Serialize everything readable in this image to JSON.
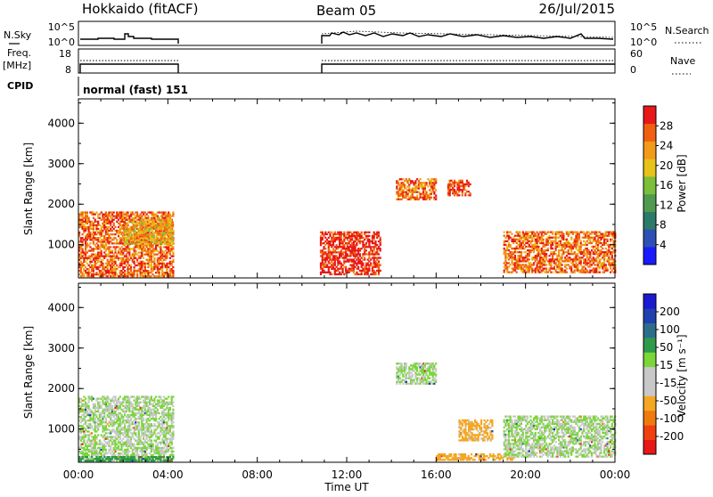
{
  "header": {
    "station": "Hokkaido (fitACF)",
    "beam": "Beam 05",
    "date": "26/Jul/2015"
  },
  "summary_panels": {
    "nsky": {
      "left_label": "N.Sky",
      "right_label": "N.Search",
      "left_ticks": [
        "10^5",
        "10^0"
      ],
      "right_ticks": [
        "10^5",
        "10^0"
      ]
    },
    "freq": {
      "left_label_1": "Freq.",
      "left_label_2": "[MHz]",
      "right_label": "Nave",
      "left_ticks": [
        "18",
        "8"
      ],
      "right_ticks": [
        "60",
        "0"
      ]
    },
    "cpid": {
      "label": "CPID",
      "segment_label": "normal (fast) 151"
    }
  },
  "x_axis": {
    "title": "Time UT",
    "ticks": [
      "00:00",
      "04:00",
      "08:00",
      "12:00",
      "16:00",
      "20:00",
      "00:00"
    ]
  },
  "colors": {
    "power_scale": [
      "#1a1aff",
      "#2e4fb5",
      "#2c7a6a",
      "#4f9a4f",
      "#7bbf3a",
      "#e6c21a",
      "#f29a1a",
      "#f06010",
      "#e81818"
    ],
    "velocity_scale": [
      "#e81818",
      "#f04010",
      "#f07a10",
      "#f5a623",
      "#c8c8c8",
      "#c8c8c8",
      "#7bd63a",
      "#2e9a4a",
      "#2c6e8a",
      "#2040b0",
      "#1a1ad0"
    ]
  },
  "chart_data": [
    {
      "type": "heatmap",
      "title": "",
      "xlabel": "",
      "ylabel": "Slant Range [km]",
      "yticks": [
        "1000",
        "2000",
        "3000",
        "4000"
      ],
      "ylim": [
        180,
        4600
      ],
      "xlim_hours": [
        0,
        24
      ],
      "colorbar": {
        "label": "Power [dB]",
        "ticks": [
          "4",
          "8",
          "12",
          "16",
          "20",
          "24",
          "28"
        ],
        "range": [
          0,
          32
        ]
      },
      "data_gap_hours": [
        4.2,
        10.8
      ],
      "echo_regions": [
        {
          "t0": 0.0,
          "t1": 4.2,
          "r0": 200,
          "r1": 1800,
          "power_db": 26
        },
        {
          "t0": 2.0,
          "t1": 4.2,
          "r0": 1000,
          "r1": 1600,
          "power_db": 22
        },
        {
          "t0": 10.8,
          "t1": 13.5,
          "r0": 250,
          "r1": 1300,
          "power_db": 30
        },
        {
          "t0": 14.2,
          "t1": 16.0,
          "r0": 2100,
          "r1": 2600,
          "power_db": 26
        },
        {
          "t0": 16.5,
          "t1": 17.5,
          "r0": 2200,
          "r1": 2600,
          "power_db": 28
        },
        {
          "t0": 19.0,
          "t1": 24.0,
          "r0": 300,
          "r1": 1300,
          "power_db": 26
        }
      ]
    },
    {
      "type": "heatmap",
      "title": "",
      "xlabel": "Time UT",
      "ylabel": "Slant Range [km]",
      "yticks": [
        "1000",
        "2000",
        "3000",
        "4000"
      ],
      "ylim": [
        180,
        4600
      ],
      "xlim_hours": [
        0,
        24
      ],
      "colorbar": {
        "label": "Velocity [m s⁻¹]",
        "ticks": [
          "200",
          "100",
          "50",
          "15",
          "-15",
          "-50",
          "-100",
          "-200"
        ]
      },
      "data_gap_hours": [
        4.2,
        10.8
      ],
      "echo_regions": [
        {
          "t0": 0.0,
          "t1": 4.2,
          "r0": 200,
          "r1": 1800,
          "velocity_ms": 0
        },
        {
          "t0": 0.0,
          "t1": 4.2,
          "r0": 200,
          "r1": 300,
          "velocity_ms": 30
        },
        {
          "t0": 14.2,
          "t1": 16.0,
          "r0": 2100,
          "r1": 2600,
          "velocity_ms": 0
        },
        {
          "t0": 17.0,
          "t1": 18.5,
          "r0": 700,
          "r1": 1200,
          "velocity_ms": -60
        },
        {
          "t0": 16.0,
          "t1": 19.5,
          "r0": 220,
          "r1": 400,
          "velocity_ms": -70
        },
        {
          "t0": 19.0,
          "t1": 24.0,
          "r0": 300,
          "r1": 1300,
          "velocity_ms": 0
        }
      ]
    }
  ]
}
